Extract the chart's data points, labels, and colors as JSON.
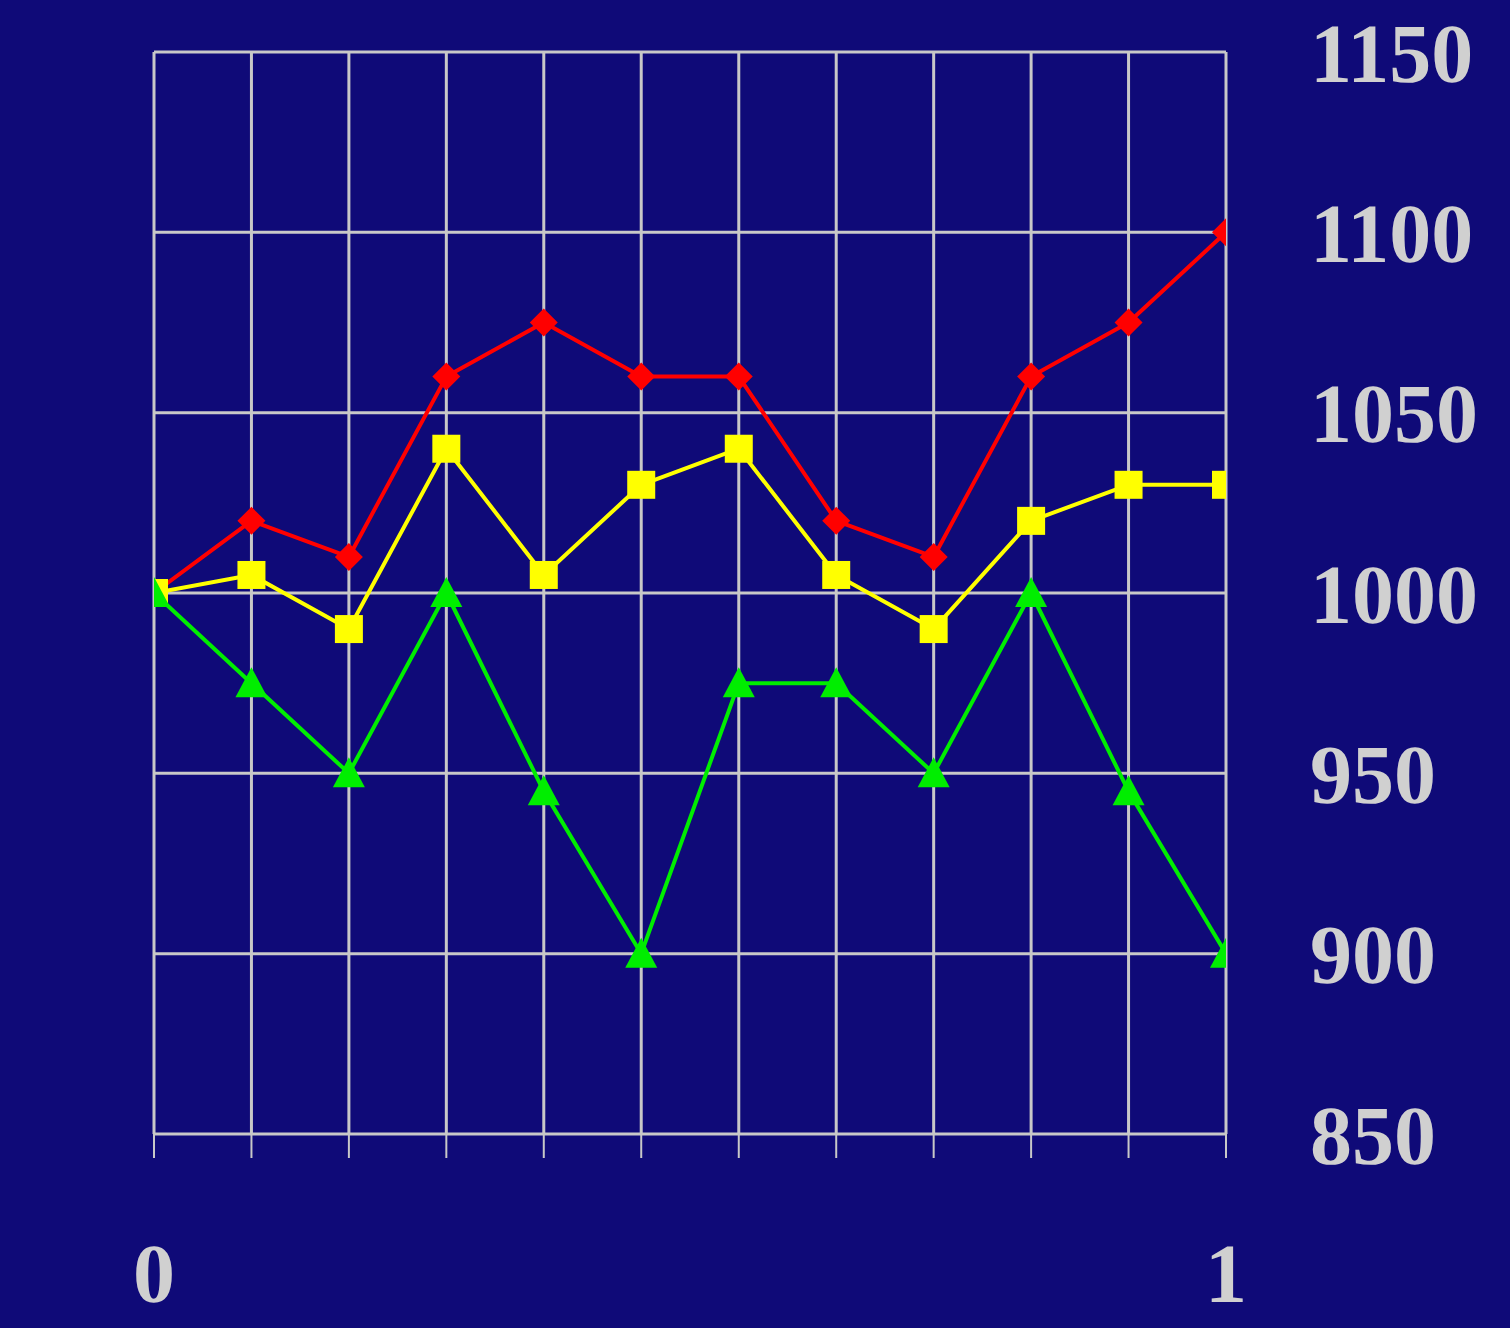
{
  "chart_data": {
    "type": "line",
    "x": [
      0,
      0.0909,
      0.1818,
      0.2727,
      0.3636,
      0.4545,
      0.5455,
      0.6364,
      0.7273,
      0.8182,
      0.9091,
      1
    ],
    "series": [
      {
        "color": "#ff0000",
        "marker": "diamond",
        "values": [
          1000,
          1020,
          1010,
          1060,
          1075,
          1060,
          1060,
          1020,
          1010,
          1060,
          1075,
          1100
        ]
      },
      {
        "color": "#ffff00",
        "marker": "square",
        "values": [
          1000,
          1005,
          990,
          1040,
          1005,
          1030,
          1040,
          1005,
          990,
          1020,
          1030,
          1030
        ]
      },
      {
        "color": "#00ee00",
        "marker": "triangle",
        "values": [
          1000,
          975,
          950,
          1000,
          945,
          900,
          975,
          975,
          950,
          1000,
          945,
          900
        ]
      }
    ],
    "xlim": [
      0,
      1
    ],
    "xticks": [
      0,
      {
        "value": 0.0909,
        "label": null
      },
      {
        "value": 0.1818,
        "label": null
      },
      {
        "value": 0.2727,
        "label": null
      },
      {
        "value": 0.3636,
        "label": null
      },
      {
        "value": 0.4545,
        "label": null
      },
      {
        "value": 0.5455,
        "label": null
      },
      {
        "value": 0.6364,
        "label": null
      },
      {
        "value": 0.7273,
        "label": null
      },
      {
        "value": 0.8182,
        "label": null
      },
      {
        "value": 0.9091,
        "label": null
      },
      1
    ],
    "ylim": [
      850,
      1150
    ],
    "yticks": [
      850,
      900,
      950,
      1000,
      1050,
      1100,
      1150
    ],
    "grid": true,
    "line_style": "solid"
  }
}
